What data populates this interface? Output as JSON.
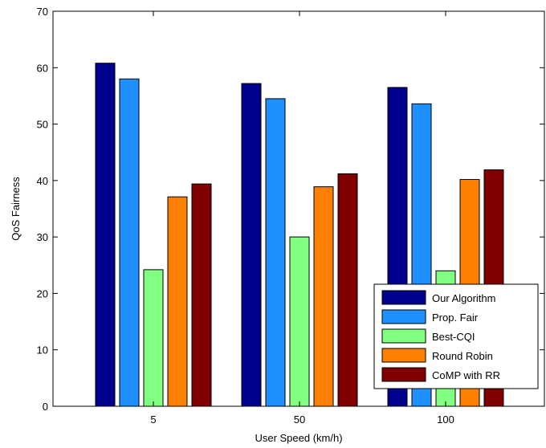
{
  "chart_data": {
    "type": "bar",
    "title": "",
    "xlabel": "User Speed (km/h)",
    "ylabel": "QoS Fairness",
    "categories": [
      "5",
      "50",
      "100"
    ],
    "ylim": [
      0,
      70
    ],
    "yticks": [
      0,
      10,
      20,
      30,
      40,
      50,
      60,
      70
    ],
    "grid": false,
    "legend_position": "bottom-right",
    "series": [
      {
        "name": "Our Algorithm",
        "color": "#00008F",
        "values": [
          60.8,
          57.2,
          56.5
        ]
      },
      {
        "name": "Prop. Fair",
        "color": "#1E90FF",
        "values": [
          58.0,
          54.5,
          53.6
        ]
      },
      {
        "name": "Best-CQI",
        "color": "#80FF80",
        "values": [
          24.2,
          30.0,
          24.0
        ]
      },
      {
        "name": "Round Robin",
        "color": "#FF7F00",
        "values": [
          37.1,
          38.9,
          40.2
        ]
      },
      {
        "name": "CoMP with RR",
        "color": "#800000",
        "values": [
          39.4,
          41.2,
          41.9
        ]
      }
    ]
  }
}
